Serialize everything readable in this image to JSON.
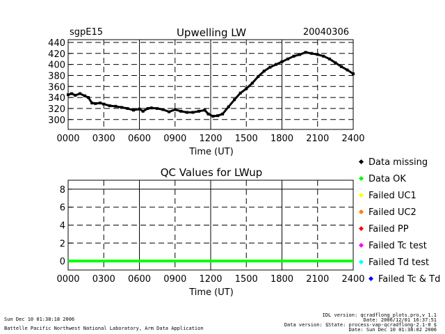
{
  "header": {
    "site": "sgpE15",
    "date": "20040306"
  },
  "footer": {
    "left_line1": "Sun Dec 10 01:38:18 2006",
    "left_line2": "Battelle Pacific Northwest National Laboratory, Arm Data Application",
    "right_line1": "IDL version: qcradflong_plots.pro,v 1.1",
    "right_line2": "Date: 2006/12/01 16:37:51",
    "right_line3": "Data version: $State: process-vap-qcradflong-2.1-0 $",
    "right_line4": "Date: Sun Dec 10 01:38:02 2006"
  },
  "legend": {
    "items": [
      {
        "label": "Data missing",
        "color": "#000000"
      },
      {
        "label": "Data OK",
        "color": "#00ff00"
      },
      {
        "label": "Failed UC1",
        "color": "#ffff00"
      },
      {
        "label": "Failed UC2",
        "color": "#ff8000"
      },
      {
        "label": "Failed PP",
        "color": "#ff0000"
      },
      {
        "label": "Failed Tc test",
        "color": "#ff00ff"
      },
      {
        "label": "Failed Td test",
        "color": "#00ffff"
      },
      {
        "label": "Failed Tc & Td",
        "color": "#0000ff"
      }
    ]
  },
  "chart_data": [
    {
      "type": "line",
      "title": "Upwelling LW",
      "xlabel": "Time (UT)",
      "ylabel": "",
      "x_ticks": [
        "0000",
        "0300",
        "0600",
        "0900",
        "1200",
        "1500",
        "1800",
        "2100",
        "2400"
      ],
      "y_ticks": [
        300,
        320,
        340,
        360,
        380,
        400,
        420,
        440
      ],
      "xlim": [
        0,
        24
      ],
      "ylim": [
        282,
        445
      ],
      "grid": true,
      "series": [
        {
          "color": "#000000",
          "x": [
            0.0,
            0.3,
            0.6,
            1.0,
            1.4,
            1.7,
            2.0,
            2.3,
            2.7,
            3.0,
            3.5,
            4.0,
            4.5,
            5.0,
            5.5,
            6.0,
            6.3,
            6.7,
            7.0,
            7.5,
            8.0,
            8.5,
            9.0,
            9.5,
            10.0,
            10.5,
            11.0,
            11.5,
            11.8,
            12.2,
            12.6,
            13.0,
            13.5,
            14.0,
            14.5,
            15.0,
            15.5,
            16.0,
            16.5,
            17.0,
            17.5,
            18.0,
            18.5,
            19.0,
            19.5,
            20.0,
            20.5,
            21.0,
            21.5,
            22.0,
            22.5,
            23.0,
            23.5,
            24.0
          ],
          "y": [
            345,
            347,
            344,
            347,
            343,
            340,
            330,
            329,
            330,
            328,
            325,
            324,
            322,
            320,
            317,
            319,
            315,
            320,
            321,
            320,
            318,
            314,
            318,
            315,
            313,
            313,
            315,
            317,
            310,
            306,
            307,
            310,
            323,
            336,
            348,
            356,
            366,
            378,
            388,
            395,
            400,
            405,
            410,
            415,
            418,
            422,
            420,
            418,
            415,
            410,
            403,
            396,
            390,
            383
          ]
        }
      ]
    },
    {
      "type": "line",
      "title": "QC Values for LWup",
      "xlabel": "Time (UT)",
      "ylabel": "",
      "x_ticks": [
        "0000",
        "0300",
        "0600",
        "0900",
        "1200",
        "1500",
        "1800",
        "2100",
        "2400"
      ],
      "y_ticks": [
        0,
        2,
        4,
        6,
        8
      ],
      "xlim": [
        0,
        24
      ],
      "ylim": [
        -1,
        9
      ],
      "grid": true,
      "series": [
        {
          "color": "#00ff00",
          "x": [
            0,
            24
          ],
          "y": [
            0,
            0
          ]
        }
      ]
    }
  ]
}
